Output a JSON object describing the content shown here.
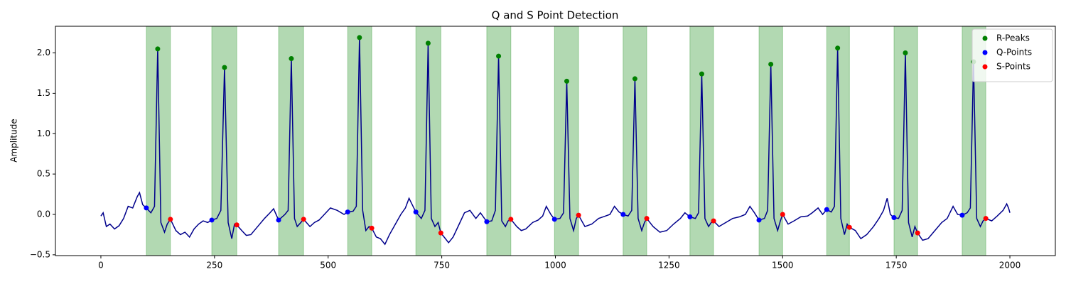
{
  "chart_data": {
    "type": "line",
    "title": "Q and S Point Detection",
    "ylabel": "Amplitude",
    "xlim": [
      -100,
      2100
    ],
    "ylim": [
      -0.51,
      2.33
    ],
    "xticks": [
      0,
      250,
      500,
      750,
      1000,
      1250,
      1500,
      1750,
      2000
    ],
    "yticks": [
      {
        "value": -0.5,
        "label": "−0.5"
      },
      {
        "value": 0,
        "label": "0.0"
      },
      0.5,
      {
        "value": 1,
        "label": "1.0"
      },
      1.5,
      {
        "value": 2,
        "label": "2.0"
      }
    ],
    "color": "#00008b",
    "span_color": "#008000",
    "legend": "upper right",
    "x": [
      0,
      5,
      12,
      20,
      30,
      40,
      50,
      60,
      70,
      80,
      85,
      92,
      100,
      110,
      118,
      125,
      132,
      140,
      146,
      153,
      165,
      175,
      185,
      195,
      205,
      215,
      225,
      235,
      244,
      255,
      264,
      272,
      280,
      288,
      294,
      299,
      310,
      320,
      330,
      345,
      360,
      372,
      380,
      391,
      405,
      412,
      419,
      426,
      432,
      440,
      446,
      460,
      470,
      480,
      495,
      505,
      520,
      535,
      543,
      555,
      562,
      569,
      576,
      583,
      590,
      596,
      606,
      615,
      625,
      635,
      650,
      660,
      670,
      678,
      685,
      693,
      705,
      713,
      720,
      727,
      735,
      742,
      748,
      758,
      765,
      775,
      790,
      800,
      812,
      825,
      835,
      849,
      860,
      868,
      875,
      882,
      890,
      896,
      902,
      915,
      925,
      935,
      950,
      962,
      972,
      980,
      990,
      998,
      1010,
      1018,
      1025,
      1032,
      1040,
      1046,
      1051,
      1065,
      1080,
      1095,
      1110,
      1120,
      1130,
      1140,
      1149,
      1160,
      1168,
      1175,
      1182,
      1190,
      1196,
      1201,
      1215,
      1230,
      1245,
      1260,
      1275,
      1285,
      1296,
      1308,
      1315,
      1322,
      1329,
      1337,
      1343,
      1348,
      1360,
      1375,
      1390,
      1405,
      1418,
      1428,
      1438,
      1448,
      1460,
      1467,
      1474,
      1481,
      1489,
      1495,
      1500,
      1512,
      1525,
      1540,
      1555,
      1565,
      1578,
      1588,
      1597,
      1607,
      1614,
      1621,
      1628,
      1636,
      1642,
      1647,
      1660,
      1672,
      1685,
      1700,
      1712,
      1722,
      1730,
      1737,
      1745,
      1755,
      1763,
      1770,
      1777,
      1785,
      1791,
      1797,
      1808,
      1820,
      1835,
      1850,
      1862,
      1875,
      1885,
      1895,
      1906,
      1913,
      1920,
      1927,
      1935,
      1941,
      1947,
      1960,
      1972,
      1985,
      1993,
      1997,
      2000
    ],
    "values": [
      -0.02,
      0.02,
      -0.15,
      -0.12,
      -0.18,
      -0.14,
      -0.05,
      0.1,
      0.08,
      0.22,
      0.27,
      0.12,
      0.08,
      0.02,
      0.1,
      2.05,
      -0.1,
      -0.22,
      -0.12,
      -0.06,
      -0.2,
      -0.25,
      -0.22,
      -0.28,
      -0.18,
      -0.12,
      -0.08,
      -0.1,
      -0.07,
      -0.05,
      0.05,
      1.82,
      -0.1,
      -0.3,
      -0.12,
      -0.13,
      -0.2,
      -0.26,
      -0.25,
      -0.15,
      -0.05,
      0.02,
      0.07,
      -0.07,
      0.0,
      0.05,
      1.93,
      -0.05,
      -0.15,
      -0.1,
      -0.06,
      -0.15,
      -0.1,
      -0.07,
      0.02,
      0.08,
      0.05,
      0.0,
      0.03,
      0.04,
      0.1,
      2.19,
      0.05,
      -0.2,
      -0.15,
      -0.17,
      -0.28,
      -0.3,
      -0.37,
      -0.25,
      -0.1,
      0.0,
      0.08,
      0.2,
      0.12,
      0.03,
      -0.05,
      0.05,
      2.12,
      -0.05,
      -0.15,
      -0.1,
      -0.23,
      -0.3,
      -0.35,
      -0.28,
      -0.1,
      0.02,
      0.05,
      -0.05,
      0.02,
      -0.09,
      -0.08,
      0.05,
      1.96,
      -0.08,
      -0.15,
      -0.08,
      -0.06,
      -0.15,
      -0.2,
      -0.18,
      -0.1,
      -0.07,
      -0.02,
      0.1,
      0.0,
      -0.06,
      -0.05,
      0.02,
      1.65,
      -0.05,
      -0.2,
      -0.05,
      -0.01,
      -0.15,
      -0.12,
      -0.05,
      -0.02,
      0.0,
      0.1,
      0.03,
      0.0,
      -0.02,
      0.05,
      1.68,
      -0.05,
      -0.2,
      -0.1,
      -0.05,
      -0.15,
      -0.22,
      -0.2,
      -0.12,
      -0.05,
      0.02,
      -0.03,
      -0.05,
      0.02,
      1.74,
      -0.05,
      -0.15,
      -0.1,
      -0.08,
      -0.15,
      -0.1,
      -0.05,
      -0.03,
      0.0,
      0.1,
      0.02,
      -0.07,
      -0.05,
      0.05,
      1.86,
      -0.05,
      -0.2,
      -0.08,
      0.0,
      -0.12,
      -0.08,
      -0.03,
      -0.02,
      0.02,
      0.08,
      0.0,
      0.06,
      0.03,
      0.1,
      2.06,
      -0.05,
      -0.25,
      -0.12,
      -0.16,
      -0.2,
      -0.3,
      -0.25,
      -0.15,
      -0.05,
      0.05,
      0.2,
      0.0,
      -0.04,
      -0.05,
      0.05,
      2.0,
      -0.1,
      -0.28,
      -0.15,
      -0.23,
      -0.32,
      -0.3,
      -0.2,
      -0.1,
      -0.05,
      0.1,
      0.0,
      -0.01,
      0.02,
      0.08,
      1.89,
      -0.05,
      -0.15,
      -0.08,
      -0.05,
      -0.08,
      -0.02,
      0.05,
      0.13,
      0.08,
      0.02
    ],
    "series": [
      {
        "name": "R-Peaks",
        "type": "scatter",
        "color": "#008000",
        "x": [
          125,
          272,
          419,
          569,
          720,
          875,
          1025,
          1175,
          1322,
          1474,
          1621,
          1770,
          1920
        ],
        "values": [
          2.05,
          1.82,
          1.93,
          2.19,
          2.12,
          1.96,
          1.65,
          1.68,
          1.74,
          1.86,
          2.06,
          2.0,
          1.89
        ]
      },
      {
        "name": "Q-Points",
        "type": "scatter",
        "color": "#0000ff",
        "x": [
          100,
          244,
          391,
          543,
          693,
          849,
          998,
          1149,
          1296,
          1448,
          1597,
          1745,
          1895
        ],
        "values": [
          0.08,
          -0.07,
          -0.07,
          0.03,
          0.03,
          -0.09,
          -0.06,
          0.0,
          -0.03,
          -0.07,
          0.06,
          -0.04,
          -0.01
        ]
      },
      {
        "name": "S-Points",
        "type": "scatter",
        "color": "#ff0000",
        "x": [
          153,
          299,
          446,
          596,
          748,
          902,
          1051,
          1201,
          1348,
          1500,
          1647,
          1797,
          1947
        ],
        "values": [
          -0.06,
          -0.13,
          -0.06,
          -0.17,
          -0.23,
          -0.06,
          -0.01,
          -0.05,
          -0.08,
          0.0,
          -0.16,
          -0.23,
          -0.05
        ]
      }
    ]
  }
}
